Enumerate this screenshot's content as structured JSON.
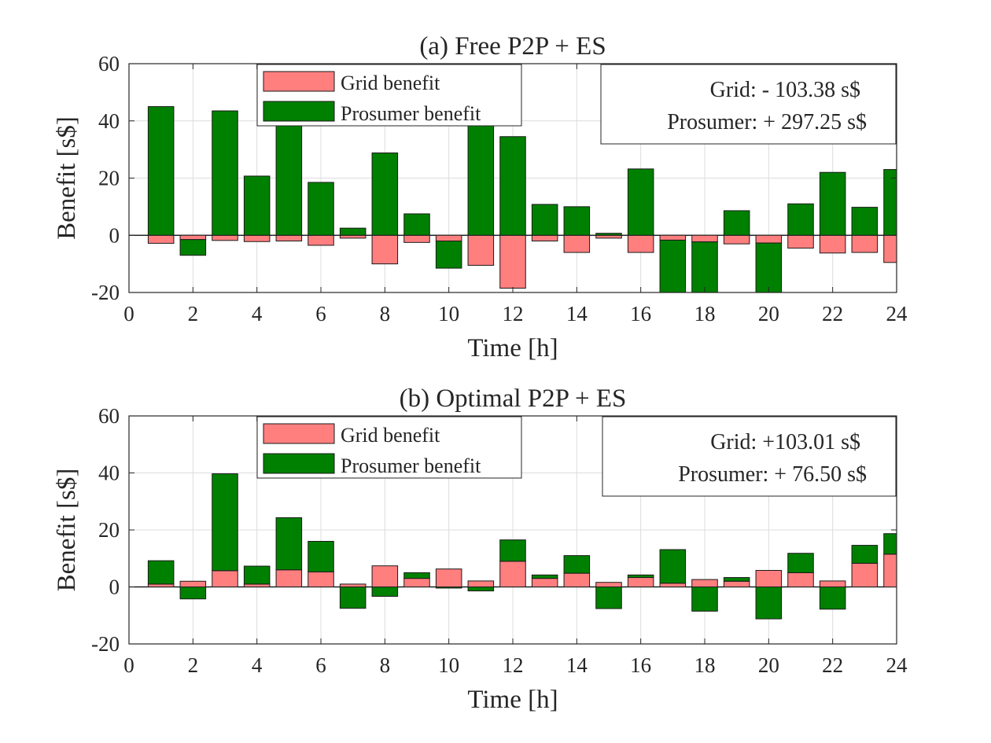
{
  "colors": {
    "grid_bar": "#ff7f7f",
    "prosumer_bar": "#008000",
    "bar_edge": "#1a1a1a",
    "axis": "#262626",
    "gridline": "#dcdcdc"
  },
  "chart_data": [
    {
      "type": "bar",
      "stacking": "stacked",
      "title": "(a) Free P2P + ES",
      "xlabel": "Time [h]",
      "ylabel": "Benefit [s$]",
      "xlim": [
        0,
        24
      ],
      "ylim": [
        -20,
        60
      ],
      "xticks": [
        "0",
        "2",
        "4",
        "6",
        "8",
        "10",
        "12",
        "14",
        "16",
        "18",
        "20",
        "22",
        "24"
      ],
      "yticks": [
        "-20",
        "0",
        "20",
        "40",
        "60"
      ],
      "grid": true,
      "legend": {
        "position": "top-left",
        "entries": [
          "Grid benefit",
          "Prosumer benefit"
        ]
      },
      "annotation": {
        "position": "top-right",
        "grid_text": "Grid: - 103.38 s$",
        "prosumer_text": "Prosumer: + 297.25 s$"
      },
      "x": [
        1,
        2,
        3,
        4,
        5,
        6,
        7,
        8,
        9,
        10,
        11,
        12,
        13,
        14,
        15,
        16,
        17,
        18,
        19,
        20,
        21,
        22,
        23,
        24
      ],
      "series": [
        {
          "name": "Grid benefit",
          "values": [
            -2.8,
            -1.5,
            -1.8,
            -2.2,
            -2.0,
            -3.5,
            -1.0,
            -10.0,
            -2.5,
            -2.0,
            -10.5,
            -18.5,
            -2.0,
            -6.0,
            -1.0,
            -6.0,
            -1.7,
            -2.3,
            -3.0,
            -2.7,
            -4.5,
            -6.2,
            -6.0,
            -9.5
          ]
        },
        {
          "name": "Prosumer benefit",
          "values": [
            45.0,
            -5.5,
            43.5,
            20.7,
            40.0,
            18.5,
            2.5,
            28.8,
            7.5,
            -9.5,
            40.0,
            34.5,
            10.8,
            10.0,
            0.7,
            23.2,
            -20.0,
            -20.0,
            8.6,
            -20.0,
            11.0,
            22.0,
            9.8,
            23.0
          ]
        }
      ]
    },
    {
      "type": "bar",
      "stacking": "stacked",
      "title": "(b) Optimal P2P + ES",
      "xlabel": "Time [h]",
      "ylabel": "Benefit [s$]",
      "xlim": [
        0,
        24
      ],
      "ylim": [
        -20,
        60
      ],
      "xticks": [
        "0",
        "2",
        "4",
        "6",
        "8",
        "10",
        "12",
        "14",
        "16",
        "18",
        "20",
        "22",
        "24"
      ],
      "yticks": [
        "-20",
        "0",
        "20",
        "40",
        "60"
      ],
      "grid": true,
      "legend": {
        "position": "top-left",
        "entries": [
          "Grid benefit",
          "Prosumer benefit"
        ]
      },
      "annotation": {
        "position": "top-right",
        "grid_text": "Grid: +103.01 s$",
        "prosumer_text": "Prosumer: + 76.50 s$"
      },
      "x": [
        1,
        2,
        3,
        4,
        5,
        6,
        7,
        8,
        9,
        10,
        11,
        12,
        13,
        14,
        15,
        16,
        17,
        18,
        19,
        20,
        21,
        22,
        23,
        24
      ],
      "series": [
        {
          "name": "Grid benefit",
          "values": [
            1.0,
            2.0,
            5.7,
            1.0,
            6.0,
            5.3,
            1.0,
            7.4,
            3.0,
            6.3,
            2.1,
            9.0,
            3.0,
            4.8,
            1.6,
            3.3,
            1.3,
            2.6,
            2.0,
            5.8,
            5.0,
            2.1,
            8.3,
            11.5
          ]
        },
        {
          "name": "Prosumer benefit",
          "values": [
            8.2,
            -4.2,
            34.0,
            6.3,
            18.3,
            10.7,
            -7.5,
            -3.3,
            2.0,
            -0.4,
            -1.4,
            7.5,
            1.2,
            6.2,
            -7.6,
            0.9,
            11.8,
            -8.5,
            1.3,
            -11.2,
            6.8,
            -7.8,
            6.3,
            7.2
          ]
        }
      ]
    }
  ]
}
